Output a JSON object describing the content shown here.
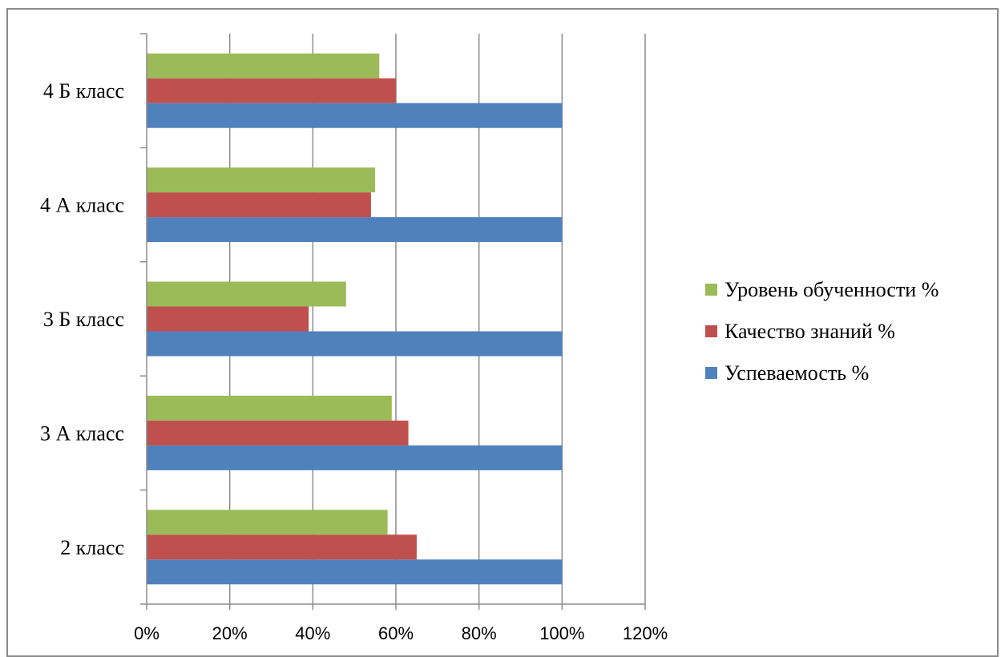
{
  "chart_data": {
    "type": "bar",
    "orientation": "horizontal",
    "categories": [
      "2 класс",
      "3 А класс",
      "3 Б класс",
      "4 А класс",
      "4 Б класс"
    ],
    "series": [
      {
        "name": "Успеваемость %",
        "color": "#4f81bd",
        "values": [
          100,
          100,
          100,
          100,
          100
        ]
      },
      {
        "name": "Качество знаний %",
        "color": "#c0504d",
        "values": [
          65,
          63,
          39,
          54,
          60
        ]
      },
      {
        "name": "Уровень обученности %",
        "color": "#9bbb59",
        "values": [
          58,
          59,
          48,
          55,
          56
        ]
      }
    ],
    "xlim": [
      0,
      120
    ],
    "x_ticks": [
      "0%",
      "20%",
      "40%",
      "60%",
      "80%",
      "100%",
      "120%"
    ],
    "grid": true,
    "legend_placement": "right",
    "legend_order": [
      "Уровень обученности %",
      "Качество знаний %",
      "Успеваемость %"
    ]
  }
}
